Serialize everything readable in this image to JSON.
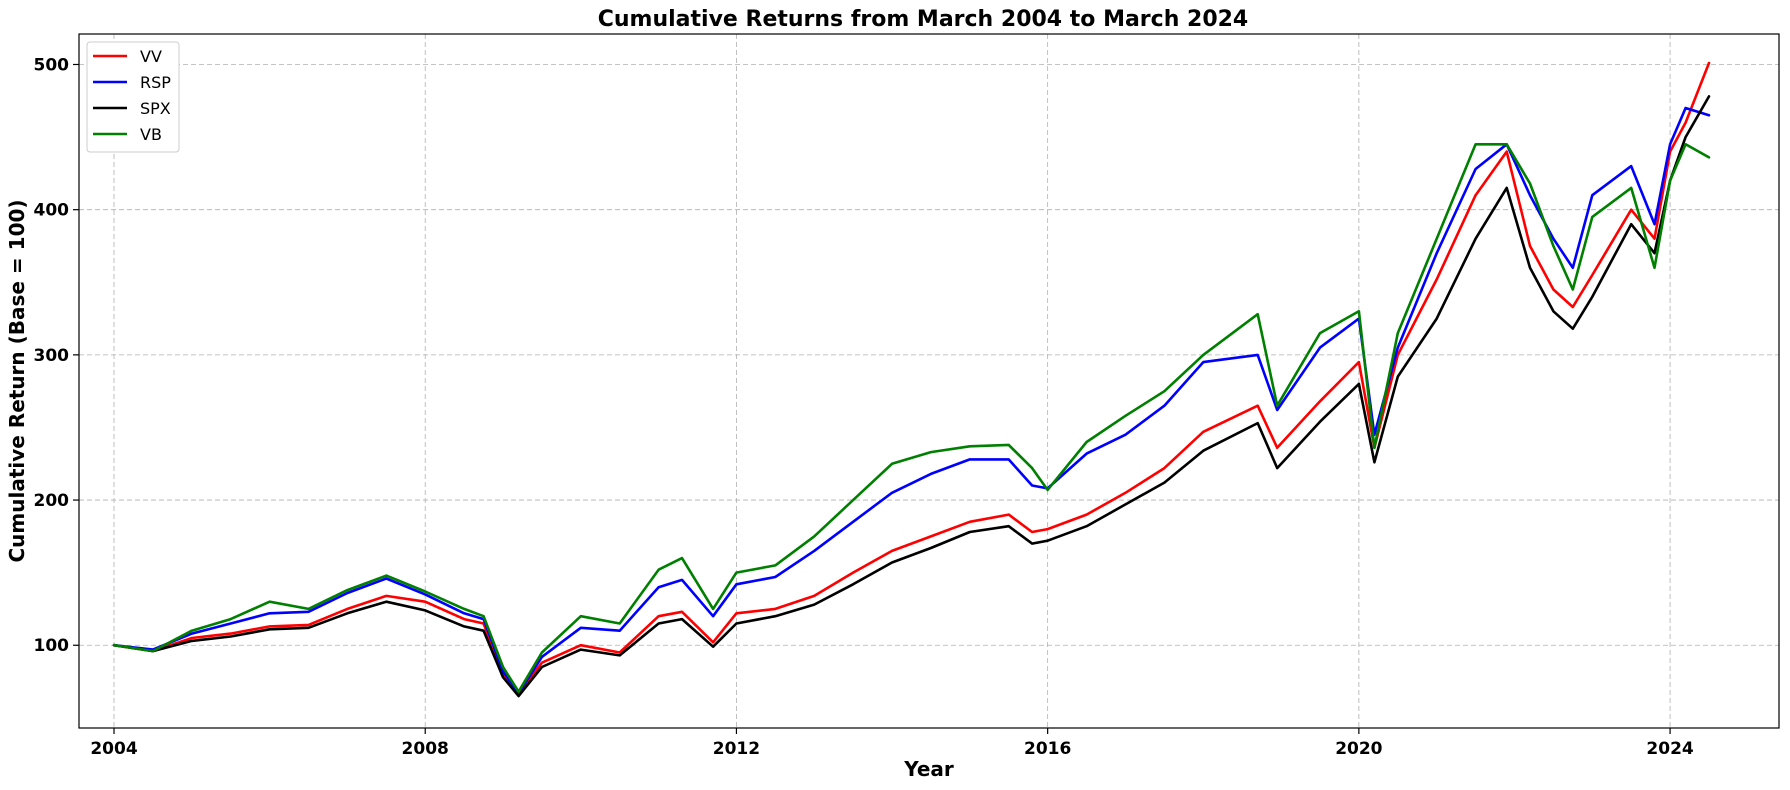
{
  "chart_data": {
    "type": "line",
    "title": "Cumulative Returns from March 2004 to March 2024",
    "xlabel": "Year",
    "ylabel": "Cumulative Return (Base = 100)",
    "xlim": [
      2003.55,
      2025.4
    ],
    "ylim": [
      43,
      521
    ],
    "xticks": [
      2004,
      2008,
      2012,
      2016,
      2020,
      2024
    ],
    "yticks": [
      100,
      200,
      300,
      400,
      500
    ],
    "grid": true,
    "legend_position": "top-left",
    "x": [
      2004.0,
      2004.5,
      2005.0,
      2005.5,
      2006.0,
      2006.5,
      2007.0,
      2007.5,
      2008.0,
      2008.5,
      2008.75,
      2009.0,
      2009.2,
      2009.5,
      2010.0,
      2010.5,
      2011.0,
      2011.3,
      2011.7,
      2012.0,
      2012.5,
      2013.0,
      2013.5,
      2014.0,
      2014.5,
      2015.0,
      2015.5,
      2015.8,
      2016.0,
      2016.5,
      2017.0,
      2017.5,
      2018.0,
      2018.7,
      2018.95,
      2019.5,
      2020.0,
      2020.2,
      2020.5,
      2021.0,
      2021.5,
      2021.9,
      2022.2,
      2022.5,
      2022.75,
      2023.0,
      2023.5,
      2023.8,
      2024.0,
      2024.2,
      2024.5
    ],
    "series": [
      {
        "name": "VV",
        "color": "#ff0000",
        "values": [
          100,
          96,
          105,
          108,
          113,
          114,
          125,
          134,
          130,
          118,
          115,
          80,
          66,
          88,
          100,
          95,
          120,
          123,
          102,
          122,
          125,
          134,
          150,
          165,
          175,
          185,
          190,
          178,
          180,
          190,
          205,
          222,
          247,
          265,
          236,
          268,
          295,
          236,
          300,
          352,
          410,
          440,
          375,
          345,
          333,
          355,
          400,
          380,
          440,
          460,
          501
        ]
      },
      {
        "name": "RSP",
        "color": "#0000ff",
        "values": [
          100,
          97,
          108,
          115,
          122,
          123,
          136,
          146,
          135,
          122,
          118,
          82,
          67,
          92,
          112,
          110,
          140,
          145,
          120,
          142,
          147,
          165,
          185,
          205,
          218,
          228,
          228,
          210,
          208,
          232,
          245,
          265,
          295,
          300,
          262,
          305,
          325,
          245,
          305,
          370,
          428,
          445,
          410,
          380,
          360,
          410,
          430,
          390,
          445,
          470,
          465
        ]
      },
      {
        "name": "SPX",
        "color": "#000000",
        "values": [
          100,
          96,
          103,
          106,
          111,
          112,
          122,
          130,
          124,
          113,
          110,
          78,
          65,
          85,
          97,
          93,
          115,
          118,
          99,
          115,
          120,
          128,
          142,
          157,
          167,
          178,
          182,
          170,
          172,
          182,
          197,
          212,
          234,
          253,
          222,
          254,
          280,
          226,
          285,
          325,
          380,
          415,
          360,
          330,
          318,
          340,
          390,
          370,
          420,
          450,
          478
        ]
      },
      {
        "name": "VB",
        "color": "#008000",
        "values": [
          100,
          96,
          110,
          118,
          130,
          125,
          138,
          148,
          137,
          125,
          120,
          85,
          68,
          95,
          120,
          115,
          152,
          160,
          125,
          150,
          155,
          175,
          200,
          225,
          233,
          237,
          238,
          222,
          207,
          240,
          258,
          275,
          300,
          328,
          265,
          315,
          330,
          236,
          315,
          380,
          445,
          445,
          418,
          375,
          345,
          395,
          415,
          360,
          420,
          445,
          436
        ]
      }
    ]
  }
}
